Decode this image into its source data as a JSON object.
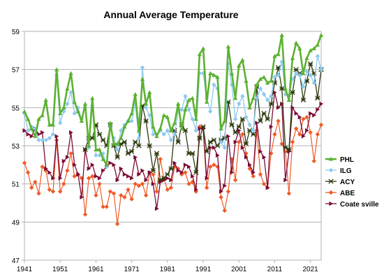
{
  "chart_data": {
    "type": "line",
    "title": "Annual Average Temperature",
    "xlabel": "",
    "ylabel": "",
    "xlim": [
      1941,
      2024
    ],
    "ylim": [
      47,
      59
    ],
    "x_ticks": [
      1941,
      1951,
      1961,
      1971,
      1981,
      1991,
      2001,
      2011,
      2021
    ],
    "y_ticks": [
      47,
      49,
      51,
      53,
      55,
      57,
      59
    ],
    "grid": "horizontal",
    "legend": "right",
    "x_start": 1941,
    "series": [
      {
        "name": "PHL",
        "color": "#5cb132",
        "marker": "triangle",
        "values": [
          54.8,
          54.4,
          53.9,
          53.5,
          54.4,
          54.6,
          55.4,
          54.1,
          54.1,
          57.0,
          54.7,
          55.0,
          56.0,
          56.8,
          55.3,
          54.8,
          54.3,
          55.2,
          53.0,
          55.5,
          52.8,
          52.8,
          52.3,
          52.0,
          54.2,
          53.1,
          53.1,
          53.4,
          54.0,
          54.3,
          54.7,
          55.7,
          53.8,
          56.5,
          55.2,
          55.8,
          54.0,
          53.5,
          53.9,
          54.6,
          54.5,
          53.8,
          54.2,
          55.2,
          53.9,
          54.9,
          55.4,
          55.5,
          54.4,
          57.8,
          58.1,
          55.3,
          56.8,
          56.7,
          56.6,
          53.9,
          54.3,
          58.2,
          56.8,
          55.5,
          57.2,
          57.5,
          56.4,
          55.0,
          55.5,
          56.2,
          56.5,
          56.6,
          56.3,
          56.4,
          57.7,
          57.8,
          58.8,
          56.0,
          55.4,
          57.6,
          58.4,
          58.1,
          56.8,
          57.6,
          58.0,
          58.1,
          58.3,
          58.8
        ]
      },
      {
        "name": "ILG",
        "color": "#8ccaf0",
        "marker": "diamond",
        "values": [
          54.7,
          53.8,
          54.0,
          53.9,
          53.3,
          53.3,
          53.3,
          53.4,
          53.6,
          56.7,
          54.2,
          54.8,
          55.2,
          55.8,
          54.7,
          55.0,
          54.4,
          55.0,
          52.9,
          55.1,
          52.5,
          52.5,
          52.6,
          51.9,
          54.0,
          53.4,
          52.8,
          53.8,
          54.1,
          54.3,
          54.3,
          55.2,
          53.4,
          57.1,
          55.0,
          54.6,
          53.6,
          53.6,
          53.8,
          53.6,
          53.8,
          53.3,
          53.6,
          54.8,
          54.9,
          55.6,
          54.9,
          54.4,
          53.8,
          56.8,
          56.8,
          55.5,
          54.8,
          56.2,
          56.0,
          53.2,
          52.9,
          57.3,
          56.2,
          54.4,
          55.2,
          55.6,
          54.5,
          54.1,
          53.8,
          55.5,
          56.0,
          55.7,
          55.4,
          55.6,
          56.6,
          56.7,
          57.4,
          55.7,
          55.6,
          56.5,
          56.8,
          56.7,
          56.1,
          56.9,
          56.7,
          56.3,
          57.7,
          57.0
        ]
      },
      {
        "name": "ACY",
        "color": "#2d3a0e",
        "marker": "star",
        "values": [
          null,
          null,
          null,
          null,
          null,
          null,
          null,
          null,
          null,
          null,
          null,
          null,
          null,
          null,
          null,
          null,
          null,
          52.8,
          53.4,
          53.4,
          54.1,
          53.6,
          53.3,
          53.0,
          54.1,
          53.0,
          52.4,
          53.1,
          53.2,
          52.6,
          52.7,
          53.2,
          53.0,
          55.1,
          54.3,
          53.0,
          51.7,
          52.6,
          51.2,
          51.3,
          51.5,
          51.8,
          53.8,
          53.2,
          54.1,
          53.8,
          52.6,
          52.6,
          51.6,
          53.4,
          54.0,
          52.7,
          53.2,
          53.3,
          53.0,
          53.3,
          53.4,
          55.3,
          54.1,
          53.7,
          54.0,
          54.4,
          53.1,
          53.8,
          53.6,
          56.1,
          54.3,
          54.7,
          54.4,
          55.2,
          56.3,
          57.1,
          56.0,
          52.9,
          52.8,
          55.8,
          57.0,
          56.8,
          55.4,
          56.4,
          57.3,
          56.8,
          55.5,
          57.0
        ]
      },
      {
        "name": "ABE",
        "color": "#ef5b26",
        "marker": "diamond",
        "values": [
          52.1,
          51.6,
          50.8,
          51.1,
          50.5,
          51.9,
          51.7,
          50.7,
          50.6,
          53.3,
          50.6,
          51.0,
          51.7,
          52.6,
          51.4,
          51.5,
          51.3,
          49.4,
          51.3,
          51.4,
          50.4,
          51.0,
          49.8,
          49.8,
          50.6,
          50.5,
          48.9,
          50.4,
          50.3,
          50.7,
          50.2,
          51.0,
          50.9,
          51.0,
          50.4,
          51.6,
          51.5,
          50.6,
          52.3,
          51.3,
          50.7,
          50.8,
          51.9,
          51.8,
          51.5,
          51.6,
          51.0,
          51.1,
          50.6,
          54.0,
          53.9,
          50.8,
          51.9,
          52.0,
          51.9,
          50.3,
          49.6,
          50.6,
          52.3,
          51.2,
          53.2,
          53.6,
          52.6,
          51.8,
          51.4,
          53.8,
          51.5,
          51.0,
          50.8,
          52.6,
          53.6,
          54.3,
          53.1,
          52.7,
          50.5,
          53.2,
          53.9,
          53.6,
          54.4,
          54.5,
          53.7,
          52.2,
          53.6,
          54.1
        ]
      },
      {
        "name": "Coate sville",
        "color": "#7b0a35",
        "marker": "triangle-right",
        "values": [
          53.8,
          53.6,
          53.5,
          53.9,
          53.6,
          53.7,
          51.8,
          51.6,
          51.3,
          53.5,
          51.3,
          52.2,
          52.4,
          53.7,
          52.0,
          51.5,
          50.3,
          52.8,
          51.8,
          52.0,
          51.4,
          51.3,
          51.7,
          51.9,
          52.1,
          52.0,
          51.2,
          51.8,
          51.5,
          51.4,
          51.3,
          52.4,
          51.5,
          51.7,
          51.2,
          51.6,
          51.0,
          49.7,
          51.1,
          51.2,
          51.3,
          51.2,
          52.1,
          51.7,
          51.6,
          52.0,
          51.9,
          51.4,
          50.7,
          53.9,
          53.9,
          51.3,
          52.9,
          52.9,
          52.5,
          50.6,
          50.9,
          53.5,
          51.6,
          53.2,
          53.8,
          52.9,
          52.4,
          52.0,
          51.6,
          54.2,
          52.7,
          52.4,
          50.8,
          54.0,
          55.8,
          55.0,
          55.2,
          51.2,
          52.7,
          55.0,
          54.7,
          54.5,
          53.5,
          53.8,
          54.7,
          54.6,
          54.9,
          55.2
        ]
      }
    ]
  }
}
